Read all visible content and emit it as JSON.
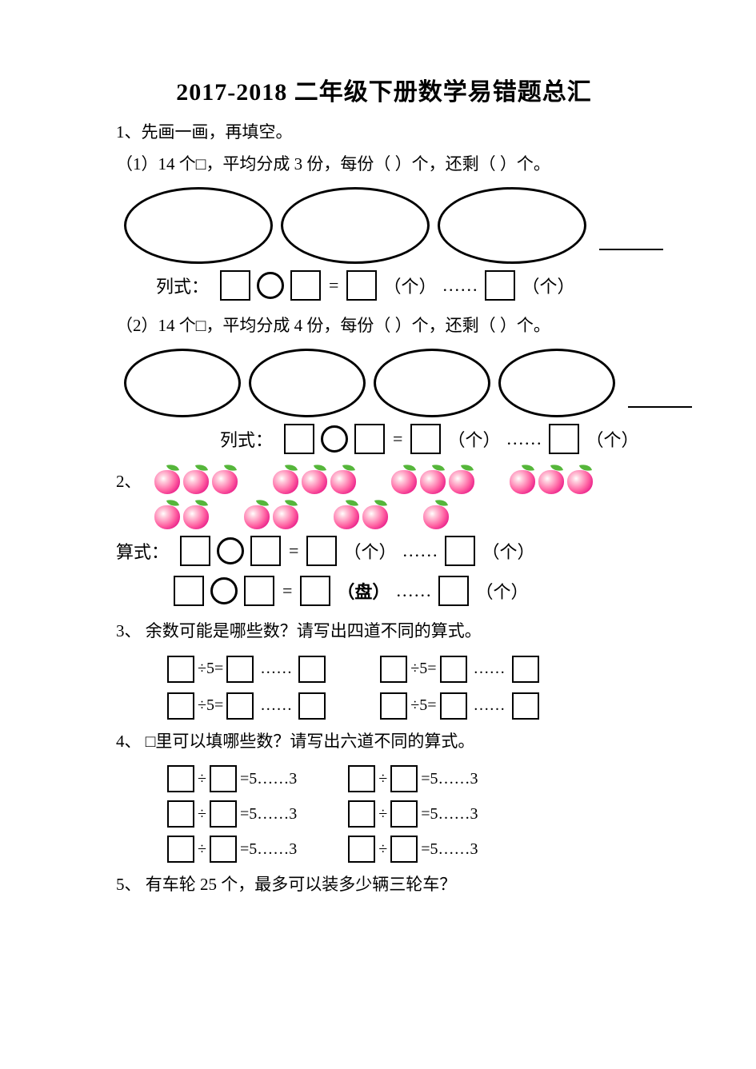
{
  "title": "2017-2018 二年级下册数学易错题总汇",
  "q1": {
    "intro": "1、先画一画，再填空。",
    "p1": "（1）14 个□，平均分成 3 份，每份（  ）个，还剩（  ）个。",
    "p2": "（2）14 个□，平均分成 4 份，每份（  ）个，还剩（  ）个。",
    "formula_label": "列式：",
    "eq": "=",
    "unit_ge": "（个）",
    "dots": "......"
  },
  "q2": {
    "label": "2、",
    "suanshi": "算式：",
    "eq": "=",
    "unit_ge": "（个）",
    "unit_pan": "（盘）",
    "dots": "......",
    "peach_groups_row1": [
      3,
      3,
      3,
      3
    ],
    "peach_groups_row2": [
      2,
      2,
      2,
      1
    ]
  },
  "q3": {
    "text": "3、 余数可能是哪些数？请写出四道不同的算式。",
    "div5": "÷5=",
    "dots": "……"
  },
  "q4": {
    "text": "4、 □里可以填哪些数？请写出六道不同的算式。",
    "divsym": "÷",
    "rhs": "=5……3"
  },
  "q5": {
    "text": "5、 有车轮 25 个，最多可以装多少辆三轮车？"
  },
  "colors": {
    "text": "#000000",
    "bg": "#ffffff",
    "peach_outer": "#e81d8a",
    "peach_mid": "#ff5fa1",
    "peach_light": "#ffd0de",
    "leaf": "#55b63a"
  }
}
